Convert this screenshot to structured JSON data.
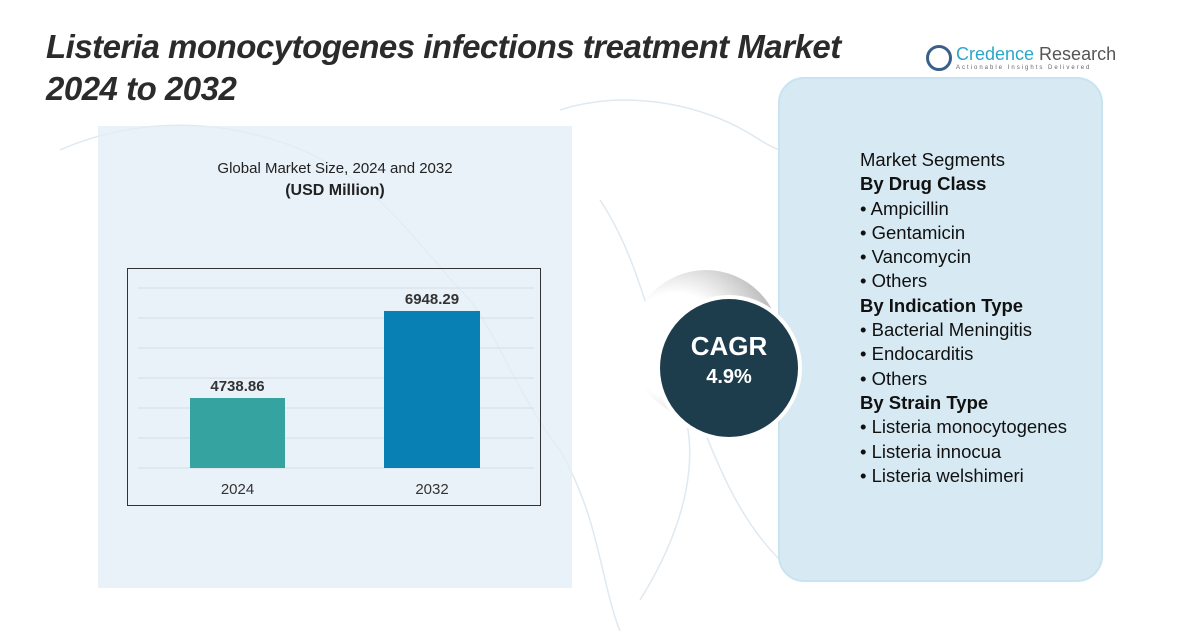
{
  "title_line1": "Listeria monocytogenes infections treatment Market",
  "title_line2": "2024 to 2032",
  "logo": {
    "name1": "Credence",
    "name2": " Research",
    "tagline": "Actionable Insights Delivered"
  },
  "chart_data": {
    "type": "bar",
    "title": "Global Market Size, 2024 and 2032",
    "subtitle": "(USD Million)",
    "categories": [
      "2024",
      "2032"
    ],
    "values": [
      4738.86,
      6948.29
    ],
    "colors": [
      "#35a3a0",
      "#0880b3"
    ],
    "grid": true
  },
  "cagr": {
    "label": "CAGR",
    "value": "4.9%"
  },
  "segments": {
    "heading": "Market Segments",
    "groups": [
      {
        "title": "By Drug Class",
        "items": [
          "Ampicillin",
          "Gentamicin",
          "Vancomycin",
          "Others"
        ]
      },
      {
        "title": "By Indication Type",
        "items": [
          "Bacterial Meningitis",
          "Endocarditis",
          "Others"
        ]
      },
      {
        "title": "By Strain Type",
        "items": [
          "Listeria monocytogenes",
          "Listeria innocua",
          "Listeria welshimeri"
        ]
      }
    ]
  }
}
